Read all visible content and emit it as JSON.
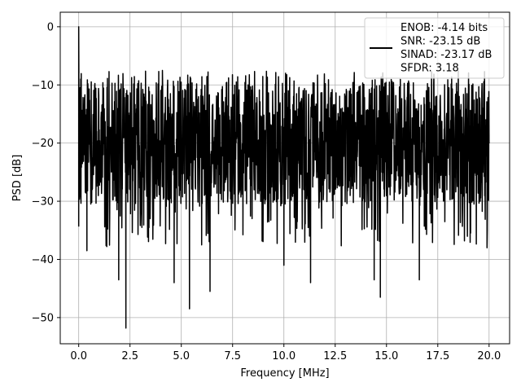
{
  "chart_data": {
    "type": "line",
    "title": "",
    "xlabel": "Frequency [MHz]",
    "ylabel": "PSD [dB]",
    "xlim": [
      -0.9,
      21.0
    ],
    "ylim": [
      -54.5,
      2.5
    ],
    "xticks": [
      0.0,
      2.5,
      5.0,
      7.5,
      10.0,
      12.5,
      15.0,
      17.5,
      20.0
    ],
    "xtick_labels": [
      "0.0",
      "2.5",
      "5.0",
      "7.5",
      "10.0",
      "12.5",
      "15.0",
      "17.5",
      "20.0"
    ],
    "yticks": [
      0,
      -10,
      -20,
      -30,
      -40,
      -50
    ],
    "ytick_labels": [
      "0",
      "−10",
      "−20",
      "−30",
      "−40",
      "−50"
    ],
    "grid": true,
    "legend_position": "top-right",
    "legend_lines": [
      "ENOB: -4.14 bits",
      "SNR: -23.15 dB",
      "SINAD: -23.17 dB",
      "SFDR: 3.18"
    ],
    "series_color": "#000000",
    "dense_trace": {
      "x_start": 0.0,
      "x_end": 20.0,
      "points": 1800,
      "typical_band_top": -10,
      "typical_band_bottom": -30
    },
    "notable_points": [
      {
        "x": 0.0,
        "y": 0.0
      },
      {
        "x": 0.02,
        "y": -26.0
      },
      {
        "x": 0.1,
        "y": -9.0
      },
      {
        "x": 0.4,
        "y": -38.5
      },
      {
        "x": 1.95,
        "y": -43.5
      },
      {
        "x": 2.3,
        "y": -51.8
      },
      {
        "x": 4.65,
        "y": -44.0
      },
      {
        "x": 5.4,
        "y": -48.5
      },
      {
        "x": 6.4,
        "y": -45.5
      },
      {
        "x": 10.0,
        "y": -41.0
      },
      {
        "x": 11.3,
        "y": -44.0
      },
      {
        "x": 14.4,
        "y": -43.5
      },
      {
        "x": 14.7,
        "y": -46.5
      },
      {
        "x": 16.6,
        "y": -43.5
      },
      {
        "x": 19.9,
        "y": -38.0
      }
    ]
  }
}
